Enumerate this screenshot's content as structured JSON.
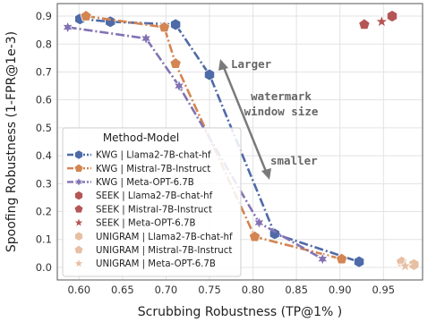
{
  "chart_data": {
    "type": "line",
    "xlabel": "Scrubbing Robustness (TP@1% )",
    "ylabel": "Spoofing Robustness (1-FPR@1e-3)",
    "xlim": [
      0.575,
      0.995
    ],
    "ylim": [
      -0.045,
      0.945
    ],
    "xticks": [
      "0.60",
      "0.65",
      "0.70",
      "0.75",
      "0.80",
      "0.85",
      "0.90",
      "0.95"
    ],
    "yticks": [
      "0.0",
      "0.1",
      "0.2",
      "0.3",
      "0.4",
      "0.5",
      "0.6",
      "0.7",
      "0.8",
      "0.9"
    ],
    "grid": true,
    "legend": {
      "title": "Method-Model",
      "position": "lower-left",
      "entries": [
        "KWG | Llama2-7B-chat-hf",
        "KWG | Mistral-7B-Instruct",
        "KWG | Meta-OPT-6.7B",
        "SEEK | Llama2-7B-chat-hf",
        "SEEK | Mistral-7B-Instruct",
        "SEEK | Meta-OPT-6.7B",
        "UNIGRAM | Llama2-7B-chat-hf",
        "UNIGRAM | Mistral-7B-Instruct",
        "UNIGRAM | Meta-OPT-6.7B"
      ]
    },
    "annotations": [
      "Larger",
      "watermark\nwindow size",
      "smaller"
    ],
    "series": [
      {
        "name": "KWG | Llama2-7B-chat-hf",
        "color": "#4e6aa8",
        "marker": "hexagon",
        "dashed": true,
        "x": [
          0.601,
          0.636,
          0.711,
          0.75,
          0.825,
          0.922
        ],
        "y": [
          0.89,
          0.88,
          0.87,
          0.69,
          0.12,
          0.02
        ]
      },
      {
        "name": "KWG | Mistral-7B-Instruct",
        "color": "#d38552",
        "marker": "pentagon",
        "dashed": true,
        "x": [
          0.608,
          0.698,
          0.711,
          0.802,
          0.902
        ],
        "y": [
          0.9,
          0.86,
          0.73,
          0.11,
          0.03
        ]
      },
      {
        "name": "KWG | Meta-OPT-6.7B",
        "color": "#8272b3",
        "marker": "star6",
        "dashed": true,
        "x": [
          0.587,
          0.677,
          0.715,
          0.807,
          0.88
        ],
        "y": [
          0.86,
          0.82,
          0.65,
          0.16,
          0.03
        ]
      },
      {
        "name": "SEEK | Llama2-7B-chat-hf",
        "color": "#b55656",
        "marker": "hexagon",
        "dashed": false,
        "x": [
          0.96
        ],
        "y": [
          0.9
        ]
      },
      {
        "name": "SEEK | Mistral-7B-Instruct",
        "color": "#b55656",
        "marker": "pentagon",
        "dashed": false,
        "x": [
          0.928
        ],
        "y": [
          0.87
        ]
      },
      {
        "name": "SEEK | Meta-OPT-6.7B",
        "color": "#b55656",
        "marker": "star",
        "dashed": false,
        "x": [
          0.948
        ],
        "y": [
          0.88
        ]
      },
      {
        "name": "UNIGRAM | Llama2-7B-chat-hf",
        "color": "#e7bfa3",
        "marker": "hexagon",
        "dashed": false,
        "x": [
          0.985
        ],
        "y": [
          0.01
        ]
      },
      {
        "name": "UNIGRAM | Mistral-7B-Instruct",
        "color": "#e7bfa3",
        "marker": "pentagon",
        "dashed": false,
        "x": [
          0.971
        ],
        "y": [
          0.02
        ]
      },
      {
        "name": "UNIGRAM | Meta-OPT-6.7B",
        "color": "#e7bfa3",
        "marker": "star",
        "dashed": false,
        "x": [
          0.975
        ],
        "y": [
          0.005
        ]
      }
    ]
  }
}
